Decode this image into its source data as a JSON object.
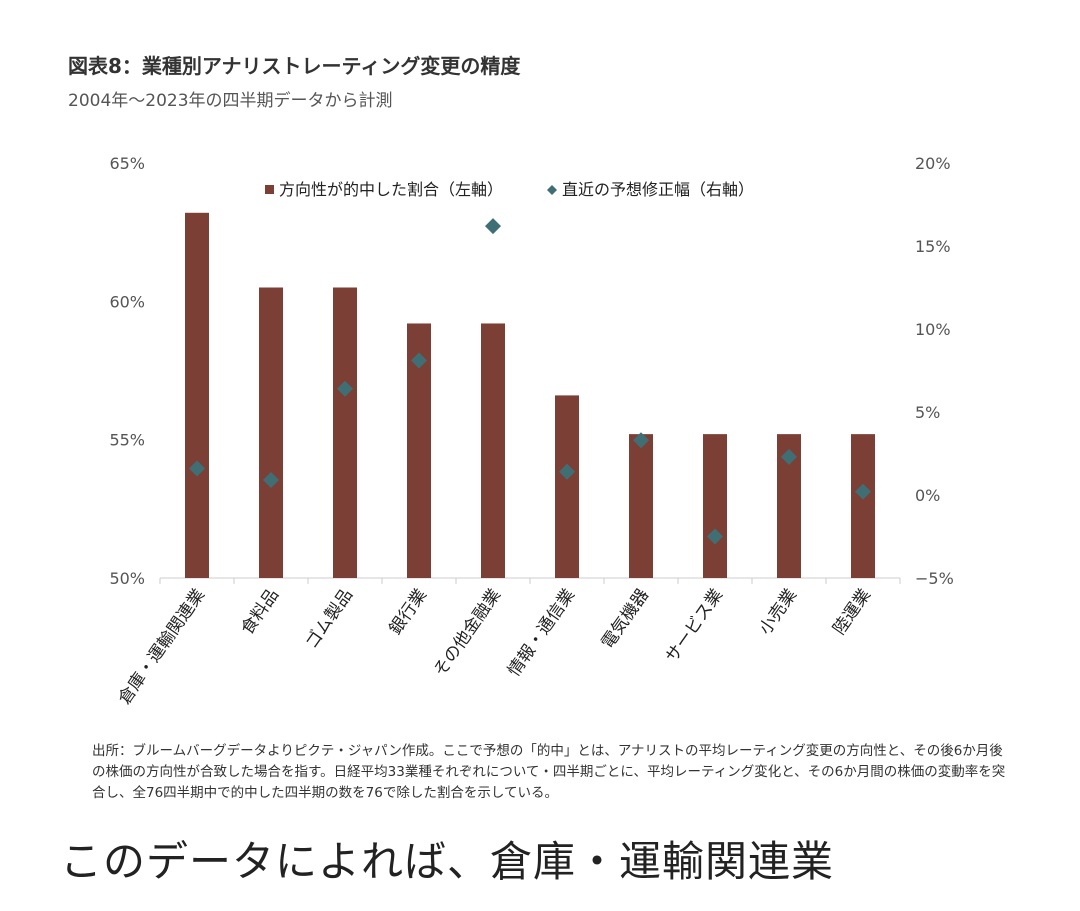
{
  "chart_data": {
    "type": "bar",
    "title": "図表8：業種別アナリストレーティング変更の精度",
    "subtitle": "2004年～2023年の四半期データから計測",
    "categories": [
      "倉庫・運輸関連業",
      "食料品",
      "ゴム製品",
      "銀行業",
      "その他金融業",
      "情報・通信業",
      "電気機器",
      "サービス業",
      "小売業",
      "陸運業"
    ],
    "series": [
      {
        "name": "方向性が的中した割合（左軸）",
        "type": "bar",
        "axis": "left",
        "color": "#7b3f35",
        "values": [
          63.2,
          60.5,
          60.5,
          59.2,
          59.2,
          56.6,
          55.2,
          55.2,
          55.2,
          55.2
        ]
      },
      {
        "name": "直近の予想修正幅（右軸）",
        "type": "scatter",
        "marker": "diamond",
        "axis": "right",
        "color": "#3f6f74",
        "values": [
          1.6,
          0.9,
          6.4,
          8.1,
          16.2,
          1.4,
          3.3,
          -2.5,
          2.3,
          0.2
        ]
      }
    ],
    "left_axis": {
      "ylim": [
        50,
        65
      ],
      "ticks": [
        50,
        55,
        60,
        65
      ],
      "tick_labels": [
        "50%",
        "55%",
        "60%",
        "65%"
      ]
    },
    "right_axis": {
      "ylim": [
        -5,
        20
      ],
      "ticks": [
        -5,
        0,
        5,
        10,
        15,
        20
      ],
      "tick_labels": [
        "−5%",
        "0%",
        "5%",
        "10%",
        "15%",
        "20%"
      ]
    },
    "legend_position": "top",
    "grid": false
  },
  "note": "出所：ブルームバーグデータよりピクテ・ジャパン作成。ここで予想の「的中」とは、アナリストの平均レーティング変更の方向性と、その後6か月後の株価の方向性が合致した場合を指す。日経平均33業種それぞれについて・四半期ごとに、平均レーティング変化と、その6か月間の株価の変動率を突合し、全76四半期中で的中した四半期の数を76で除した割合を示している。",
  "caption": "このデータによれば、倉庫・運輸関連業"
}
